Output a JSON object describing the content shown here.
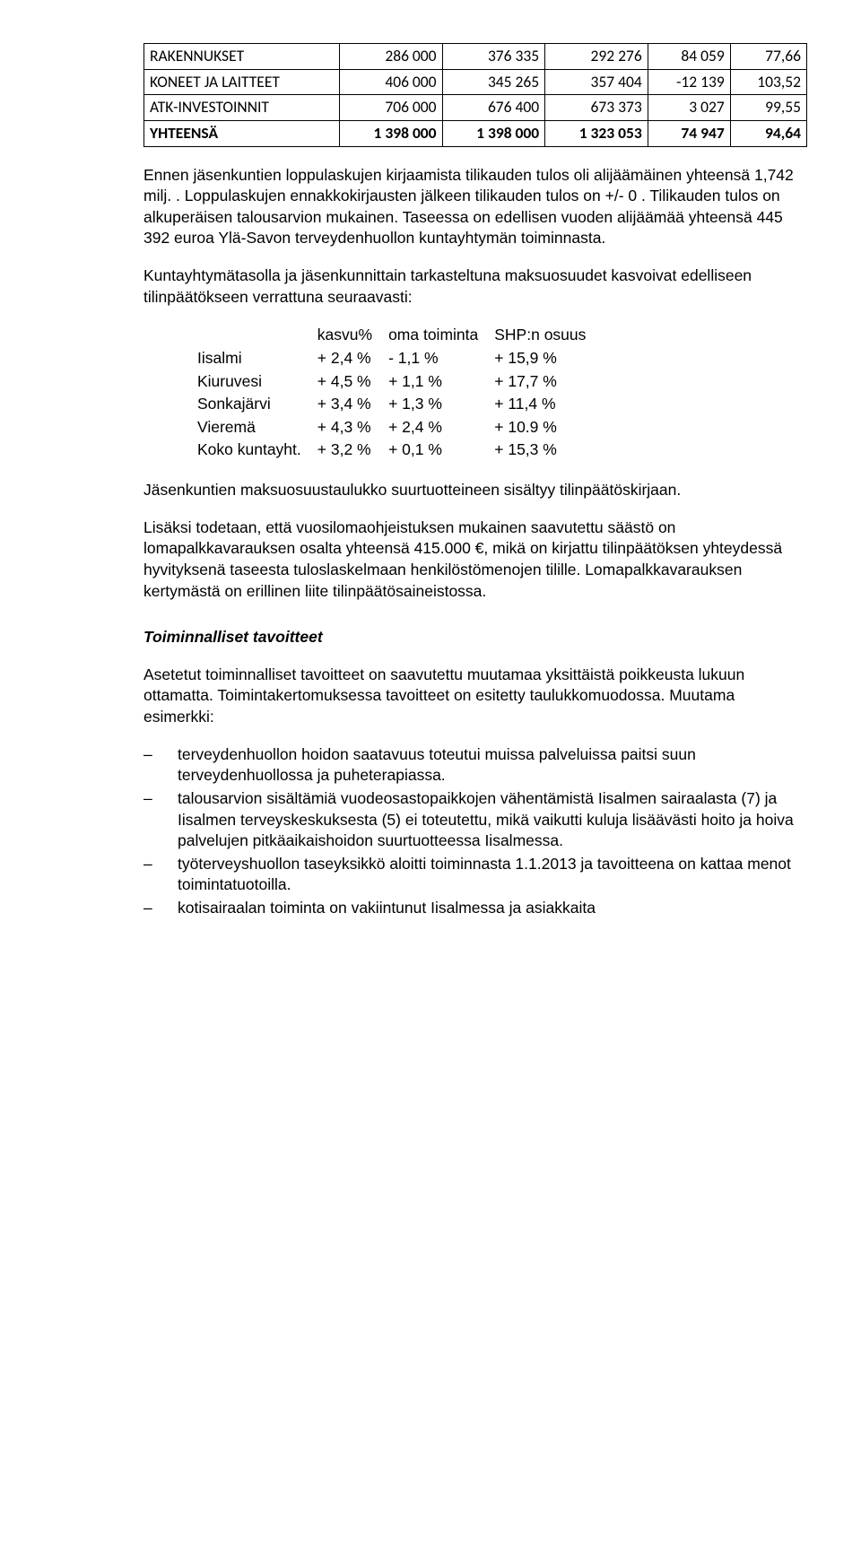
{
  "invest_table": {
    "rows": [
      {
        "label": "RAKENNUKSET",
        "c1": "286 000",
        "c2": "376 335",
        "c3": "292 276",
        "c4": "84 059",
        "c5": "77,66",
        "bold": false
      },
      {
        "label": "KONEET JA LAITTEET",
        "c1": "406 000",
        "c2": "345 265",
        "c3": "357 404",
        "c4": "-12 139",
        "c5": "103,52",
        "bold": false
      },
      {
        "label": "ATK-INVESTOINNIT",
        "c1": "706 000",
        "c2": "676 400",
        "c3": "673 373",
        "c4": "3 027",
        "c5": "99,55",
        "bold": false
      },
      {
        "label": "YHTEENSÄ",
        "c1": "1 398 000",
        "c2": "1 398 000",
        "c3": "1 323 053",
        "c4": "74 947",
        "c5": "94,64",
        "bold": true
      }
    ]
  },
  "para1": "Ennen jäsenkuntien loppulaskujen kirjaamista tilikauden tulos oli alijäämäinen yhteensä 1,742 milj. . Loppulaskujen ennakkokirjausten jälkeen tilikauden tulos on +/- 0 . Tilikauden tulos on alkuperäisen talousarvion mukainen. Taseessa on edellisen vuoden alijäämää yhteensä 445 392 euroa Ylä-Savon terveydenhuollon kuntayhtymän toiminnasta.",
  "para2": "Kuntayhtymätasolla ja jäsenkunnittain tarkasteltuna maksuosuudet kasvoivat edelliseen tilinpäätökseen verrattuna seuraavasti:",
  "growth": {
    "head": {
      "c0": "",
      "c1": "kasvu%",
      "c2": "oma toiminta",
      "c3": "SHP:n osuus"
    },
    "rows": [
      {
        "c0": "Iisalmi",
        "c1": "+ 2,4 %",
        "c2": "- 1,1 %",
        "c3": "+ 15,9 %"
      },
      {
        "c0": "Kiuruvesi",
        "c1": "+ 4,5 %",
        "c2": "+ 1,1 %",
        "c3": "+ 17,7 %"
      },
      {
        "c0": "Sonkajärvi",
        "c1": "+ 3,4 %",
        "c2": "+ 1,3 %",
        "c3": "+ 11,4 %"
      },
      {
        "c0": "Vieremä",
        "c1": "+ 4,3 %",
        "c2": "+ 2,4 %",
        "c3": "+ 10.9 %"
      },
      {
        "c0": "Koko kuntayht.",
        "c1": "+ 3,2 %",
        "c2": "+ 0,1 %",
        "c3": "+ 15,3 %"
      }
    ]
  },
  "para3": "Jäsenkuntien maksuosuustaulukko suurtuotteineen sisältyy tilinpäätöskirjaan.",
  "para4": "Lisäksi todetaan, että vuosilomaohjeistuksen mukainen saavutettu säästö on lomapalkkavarauksen osalta yhteensä 415.000 €, mikä on kirjattu tilinpäätöksen yhteydessä hyvityksenä taseesta tuloslaskelmaan henkilöstömenojen tilille. Lomapalkkavarauksen kertymästä on erillinen liite tilinpäätösaineistossa.",
  "heading": "Toiminnalliset tavoitteet",
  "para5": "Asetetut toiminnalliset tavoitteet on saavutettu muutamaa yksittäistä poikkeusta lukuun ottamatta. Toimintakertomuksessa tavoitteet on esitetty taulukkomuodossa. Muutama esimerkki:",
  "bullets": {
    "items": [
      "terveydenhuollon hoidon saatavuus toteutui muissa palveluissa paitsi suun terveydenhuollossa ja puheterapiassa.",
      "talousarvion sisältämiä vuodeosastopaikkojen vähentämistä Iisalmen sairaalasta (7) ja Iisalmen terveyskeskuksesta (5) ei toteutettu, mikä vaikutti kuluja lisäävästi hoito ja hoiva palvelujen pitkäaikaishoidon suurtuotteessa Iisalmessa.",
      "työterveyshuollon taseyksikkö aloitti toiminnasta 1.1.2013 ja tavoitteena on kattaa menot toimintatuotoilla.",
      "kotisairaalan toiminta on vakiintunut Iisalmessa ja asiakkaita"
    ]
  }
}
